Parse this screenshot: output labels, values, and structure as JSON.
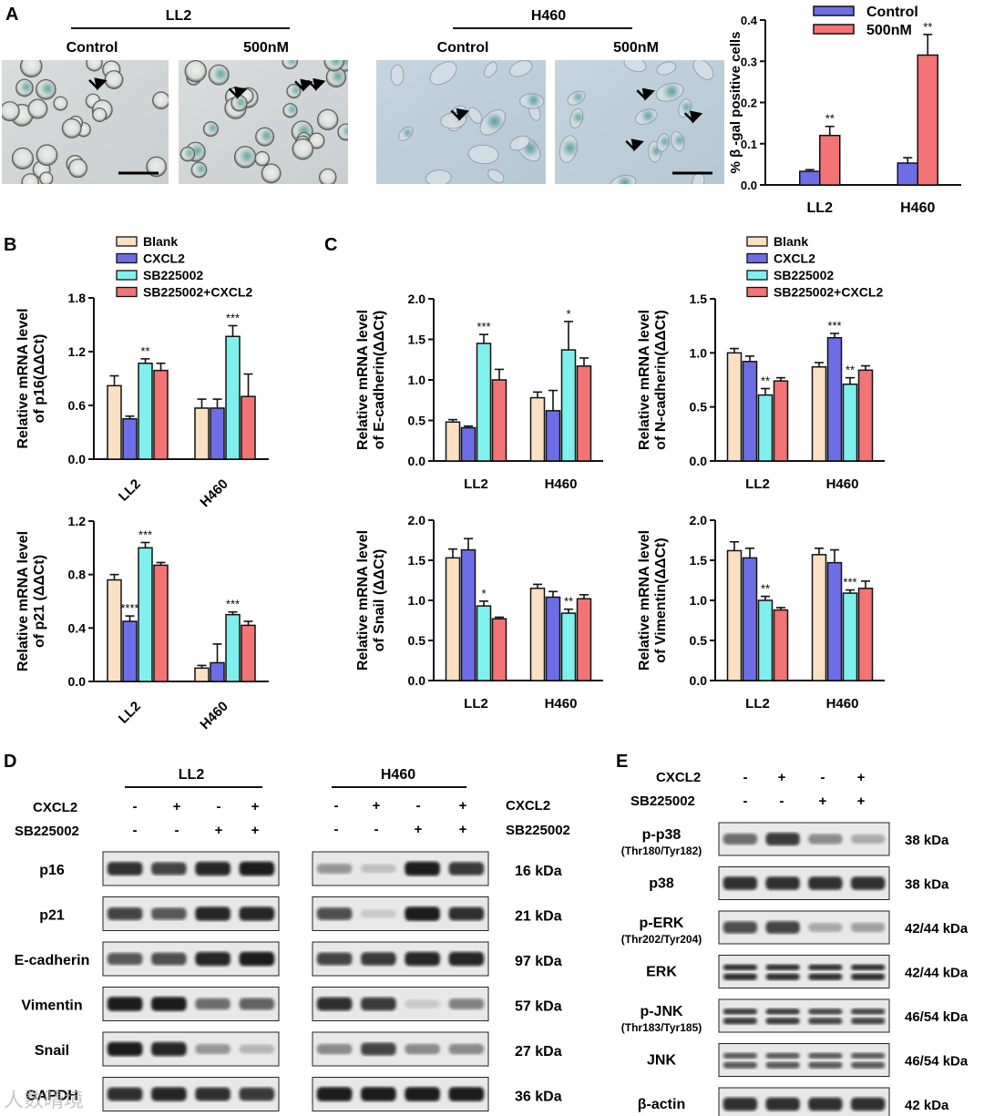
{
  "colors": {
    "blank": "#fbe0c4",
    "cxcl2": "#6d6ee5",
    "sb": "#7ff0ee",
    "sbcx": "#f27474",
    "control": "#6d6ee5",
    "nm500": "#f27474",
    "axis": "#111111",
    "micro_bg": "#dcdcdc",
    "blot_bg": "#e8e8e8",
    "band": "#1e1e1e"
  },
  "panelA": {
    "letter": "A",
    "groups": [
      {
        "name": "LL2",
        "conds": [
          "Control",
          "500nM"
        ]
      },
      {
        "name": "H460",
        "conds": [
          "Control",
          "500nM"
        ]
      }
    ]
  },
  "panelB": {
    "letter": "B"
  },
  "panelC": {
    "letter": "C"
  },
  "panelD": {
    "letter": "D",
    "groups": [
      "LL2",
      "H460"
    ],
    "cxcl2_label": "CXCL2",
    "sb_label": "SB225002",
    "cxcl2_signs": [
      "-",
      "+",
      "-",
      "+"
    ],
    "sb_signs": [
      "-",
      "-",
      "+",
      "+"
    ],
    "rows": [
      {
        "label": "p16",
        "kda": "16 kDa"
      },
      {
        "label": "p21",
        "kda": "21 kDa"
      },
      {
        "label": "E-cadherin",
        "kda": "97 kDa"
      },
      {
        "label": "Vimentin",
        "kda": "57 kDa"
      },
      {
        "label": "Snail",
        "kda": "27 kDa"
      },
      {
        "label": "GAPDH",
        "kda": "36 kDa"
      }
    ]
  },
  "panelE": {
    "letter": "E",
    "cxcl2_label": "CXCL2",
    "sb_label": "SB225002",
    "cxcl2_signs": [
      "-",
      "+",
      "-",
      "+"
    ],
    "sb_signs": [
      "-",
      "-",
      "+",
      "+"
    ],
    "rows": [
      {
        "label": "p-p38",
        "sub": "(Thr180/Tyr182)",
        "kda": "38 kDa"
      },
      {
        "label": "p38",
        "sub": "",
        "kda": "38 kDa"
      },
      {
        "label": "p-ERK",
        "sub": "(Thr202/Tyr204)",
        "kda": "42/44 kDa"
      },
      {
        "label": "ERK",
        "sub": "",
        "kda": "42/44 kDa"
      },
      {
        "label": "p-JNK",
        "sub": "(Thr183/Tyr185)",
        "kda": "46/54 kDa"
      },
      {
        "label": "JNK",
        "sub": "",
        "kda": "46/54 kDa"
      },
      {
        "label": "β-actin",
        "sub": "",
        "kda": "42 kDa"
      }
    ]
  },
  "legend4": [
    "Blank",
    "CXCL2",
    "SB225002",
    "SB225002+CXCL2"
  ],
  "watermark": "人数晴境",
  "chart_data": [
    {
      "id": "A_bar",
      "type": "bar",
      "ylabel": "% β -gal positive cells",
      "ylim": [
        0,
        0.4
      ],
      "yticks": [
        "0.0",
        "0.1",
        "0.2",
        "0.3",
        "0.4"
      ],
      "categories": [
        "LL2",
        "H460"
      ],
      "series": [
        {
          "name": "Control",
          "values": [
            0.033,
            0.053
          ],
          "err": [
            0.004,
            0.013
          ],
          "sig": [
            "",
            ""
          ]
        },
        {
          "name": "500nM",
          "values": [
            0.12,
            0.315
          ],
          "err": [
            0.022,
            0.05
          ],
          "sig": [
            "**",
            "**"
          ]
        }
      ]
    },
    {
      "id": "B_p16",
      "type": "bar",
      "ylabel": [
        "Relative mRNA level",
        "of p16(ΔΔCt)"
      ],
      "ylim": [
        0,
        1.8
      ],
      "yticks": [
        "0.0",
        "0.6",
        "1.2",
        "1.8"
      ],
      "categories": [
        "LL2",
        "H460"
      ],
      "series": [
        {
          "values": [
            0.82,
            0.57
          ],
          "err": [
            0.11,
            0.1
          ],
          "sig": [
            "",
            ""
          ]
        },
        {
          "values": [
            0.45,
            0.57
          ],
          "err": [
            0.03,
            0.1
          ],
          "sig": [
            "",
            ""
          ]
        },
        {
          "values": [
            1.07,
            1.37
          ],
          "err": [
            0.05,
            0.12
          ],
          "sig": [
            "**",
            "***"
          ]
        },
        {
          "values": [
            0.99,
            0.7
          ],
          "err": [
            0.08,
            0.25
          ],
          "sig": [
            "",
            ""
          ]
        }
      ]
    },
    {
      "id": "B_p21",
      "type": "bar",
      "ylabel": [
        "Relative mRNA level",
        "of p21 (ΔΔCt)"
      ],
      "ylim": [
        0,
        1.2
      ],
      "yticks": [
        "0.0",
        "0.4",
        "0.8",
        "1.2"
      ],
      "categories": [
        "LL2",
        "H460"
      ],
      "series": [
        {
          "values": [
            0.76,
            0.1
          ],
          "err": [
            0.04,
            0.02
          ],
          "sig": [
            "",
            ""
          ]
        },
        {
          "values": [
            0.45,
            0.14
          ],
          "err": [
            0.04,
            0.14
          ],
          "sig": [
            "****",
            ""
          ]
        },
        {
          "values": [
            1.0,
            0.5
          ],
          "err": [
            0.04,
            0.02
          ],
          "sig": [
            "***",
            "***"
          ]
        },
        {
          "values": [
            0.87,
            0.42
          ],
          "err": [
            0.02,
            0.03
          ],
          "sig": [
            "",
            ""
          ]
        }
      ]
    },
    {
      "id": "C_ecad",
      "type": "bar",
      "ylabel": [
        "Relative mRNA level",
        "of E-cadherin(ΔΔCt)"
      ],
      "ylim": [
        0,
        2.0
      ],
      "yticks": [
        "0.0",
        "0.5",
        "1.0",
        "1.5",
        "2.0"
      ],
      "categories": [
        "LL2",
        "H460"
      ],
      "series": [
        {
          "values": [
            0.48,
            0.78
          ],
          "err": [
            0.03,
            0.07
          ],
          "sig": [
            "",
            ""
          ]
        },
        {
          "values": [
            0.41,
            0.62
          ],
          "err": [
            0.02,
            0.25
          ],
          "sig": [
            "",
            ""
          ]
        },
        {
          "values": [
            1.45,
            1.37
          ],
          "err": [
            0.11,
            0.35
          ],
          "sig": [
            "***",
            "*"
          ]
        },
        {
          "values": [
            1.0,
            1.17
          ],
          "err": [
            0.13,
            0.1
          ],
          "sig": [
            "",
            ""
          ]
        }
      ]
    },
    {
      "id": "C_ncad",
      "type": "bar",
      "ylabel": [
        "Relative mRNA level",
        "of N-cadherin(ΔΔCt)"
      ],
      "ylim": [
        0,
        1.5
      ],
      "yticks": [
        "0.0",
        "0.5",
        "1.0",
        "1.5"
      ],
      "categories": [
        "LL2",
        "H460"
      ],
      "series": [
        {
          "values": [
            1.0,
            0.87
          ],
          "err": [
            0.04,
            0.04
          ],
          "sig": [
            "",
            ""
          ]
        },
        {
          "values": [
            0.92,
            1.14
          ],
          "err": [
            0.05,
            0.04
          ],
          "sig": [
            "",
            "***"
          ]
        },
        {
          "values": [
            0.61,
            0.71
          ],
          "err": [
            0.06,
            0.06
          ],
          "sig": [
            "**",
            "**"
          ]
        },
        {
          "values": [
            0.74,
            0.84
          ],
          "err": [
            0.03,
            0.04
          ],
          "sig": [
            "",
            ""
          ]
        }
      ]
    },
    {
      "id": "C_snail",
      "type": "bar",
      "ylabel": [
        "Relative mRNA level",
        "of Snail (ΔΔCt)"
      ],
      "ylim": [
        0,
        2.0
      ],
      "yticks": [
        "0.0",
        "0.5",
        "1.0",
        "1.5",
        "2.0"
      ],
      "categories": [
        "LL2",
        "H460"
      ],
      "series": [
        {
          "values": [
            1.53,
            1.15
          ],
          "err": [
            0.11,
            0.05
          ],
          "sig": [
            "",
            ""
          ]
        },
        {
          "values": [
            1.63,
            1.04
          ],
          "err": [
            0.14,
            0.07
          ],
          "sig": [
            "",
            ""
          ]
        },
        {
          "values": [
            0.93,
            0.84
          ],
          "err": [
            0.06,
            0.05
          ],
          "sig": [
            "*",
            "**"
          ]
        },
        {
          "values": [
            0.77,
            1.02
          ],
          "err": [
            0.02,
            0.05
          ],
          "sig": [
            "",
            ""
          ]
        }
      ]
    },
    {
      "id": "C_vim",
      "type": "bar",
      "ylabel": [
        "Relative mRNA level",
        "of Vimentin(ΔΔCt)"
      ],
      "ylim": [
        0,
        2.0
      ],
      "yticks": [
        "0.0",
        "0.5",
        "1.0",
        "1.5",
        "2.0"
      ],
      "categories": [
        "LL2",
        "H460"
      ],
      "series": [
        {
          "values": [
            1.62,
            1.57
          ],
          "err": [
            0.11,
            0.08
          ],
          "sig": [
            "",
            ""
          ]
        },
        {
          "values": [
            1.53,
            1.47
          ],
          "err": [
            0.12,
            0.16
          ],
          "sig": [
            "",
            ""
          ]
        },
        {
          "values": [
            1.0,
            1.09
          ],
          "err": [
            0.05,
            0.04
          ],
          "sig": [
            "**",
            "***"
          ]
        },
        {
          "values": [
            0.88,
            1.15
          ],
          "err": [
            0.03,
            0.09
          ],
          "sig": [
            "",
            ""
          ]
        }
      ]
    }
  ]
}
